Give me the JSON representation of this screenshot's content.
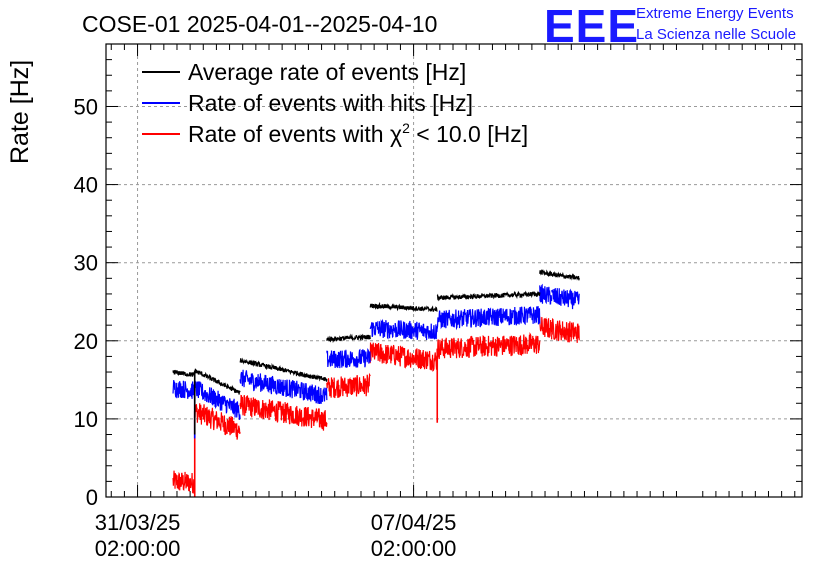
{
  "chart_data": {
    "type": "line",
    "title": "COSE-01 2025-04-01--2025-04-10",
    "xlabel": "",
    "ylabel": "Rate [Hz]",
    "ylim": [
      0,
      58
    ],
    "yticks": [
      "0",
      "10",
      "20",
      "30",
      "40",
      "50"
    ],
    "xlim_days": [
      -0.8,
      16.85
    ],
    "xticks": [
      {
        "day": 0,
        "date": "31/03/25",
        "time": "02:00:00"
      },
      {
        "day": 7,
        "date": "07/04/25",
        "time": "02:00:00"
      }
    ],
    "grid": true,
    "legend_position": "top-left",
    "legend": [
      {
        "label": "Average rate of events [Hz]",
        "series": "avg"
      },
      {
        "label": "Rate of events with hits [Hz]",
        "series": "hits"
      },
      {
        "label_pre": "Rate of events with ",
        "label_chi": "χ",
        "label_sup": "2",
        "label_post": " < 10.0 [Hz]",
        "series": "chi2"
      }
    ],
    "series": [
      {
        "name": "avg",
        "color": "#000000",
        "noise": 0.3,
        "segments": [
          {
            "x": [
              0.9,
              1.45
            ],
            "y": [
              16.0,
              15.6
            ]
          },
          {
            "x": [
              1.45,
              2.6
            ],
            "y": [
              16.2,
              13.3
            ]
          },
          {
            "x": [
              2.6,
              4.8
            ],
            "y": [
              17.5,
              15.0
            ]
          },
          {
            "x": [
              4.8,
              5.9
            ],
            "y": [
              20.2,
              20.5
            ]
          },
          {
            "x": [
              5.9,
              7.6
            ],
            "y": [
              24.5,
              24.0
            ]
          },
          {
            "x": [
              7.6,
              10.2
            ],
            "y": [
              25.5,
              26.0
            ]
          },
          {
            "x": [
              10.2,
              10.5
            ],
            "y": [
              28.8,
              28.5
            ]
          },
          {
            "x": [
              10.5,
              11.2
            ],
            "y": [
              28.5,
              28.0
            ]
          }
        ]
      },
      {
        "name": "hits",
        "color": "#0000ff",
        "noise": 1.2,
        "segments": [
          {
            "x": [
              0.9,
              1.45
            ],
            "y": [
              14.0,
              13.6
            ]
          },
          {
            "x": [
              1.45,
              2.6
            ],
            "y": [
              13.9,
              11.0
            ]
          },
          {
            "x": [
              2.6,
              4.8
            ],
            "y": [
              15.2,
              12.9
            ]
          },
          {
            "x": [
              4.8,
              5.9
            ],
            "y": [
              17.6,
              17.8
            ]
          },
          {
            "x": [
              5.9,
              7.6
            ],
            "y": [
              21.6,
              21.2
            ]
          },
          {
            "x": [
              7.6,
              10.2
            ],
            "y": [
              22.7,
              23.3
            ]
          },
          {
            "x": [
              10.2,
              10.5
            ],
            "y": [
              26.0,
              25.7
            ]
          },
          {
            "x": [
              10.5,
              11.2
            ],
            "y": [
              25.7,
              25.1
            ]
          }
        ]
      },
      {
        "name": "chi2",
        "color": "#ff0000",
        "noise": 1.4,
        "segments": [
          {
            "x": [
              0.9,
              1.45
            ],
            "y": [
              2.0,
              1.8
            ]
          },
          {
            "x": [
              1.45,
              2.6
            ],
            "y": [
              11.0,
              8.5
            ]
          },
          {
            "x": [
              2.6,
              4.8
            ],
            "y": [
              11.8,
              9.8
            ]
          },
          {
            "x": [
              4.8,
              5.9
            ],
            "y": [
              14.0,
              14.3
            ]
          },
          {
            "x": [
              5.9,
              7.6
            ],
            "y": [
              18.5,
              17.5
            ]
          },
          {
            "x": [
              7.6,
              10.2
            ],
            "y": [
              19.0,
              19.6
            ]
          },
          {
            "x": [
              10.2,
              10.5
            ],
            "y": [
              21.8,
              21.5
            ]
          },
          {
            "x": [
              10.5,
              11.2
            ],
            "y": [
              21.5,
              21.0
            ]
          }
        ]
      }
    ],
    "spikes": [
      {
        "series": "chi2",
        "x": 1.45,
        "y": 0.0
      },
      {
        "series": "hits",
        "x": 1.45,
        "y": 7.5
      },
      {
        "series": "avg",
        "x": 1.45,
        "y": 8.0
      },
      {
        "series": "chi2",
        "x": 7.6,
        "y": 9.5
      }
    ]
  },
  "logo": {
    "mark": "EEE",
    "line1": "Extreme Energy Events",
    "line2": "La Scienza nelle Scuole"
  }
}
